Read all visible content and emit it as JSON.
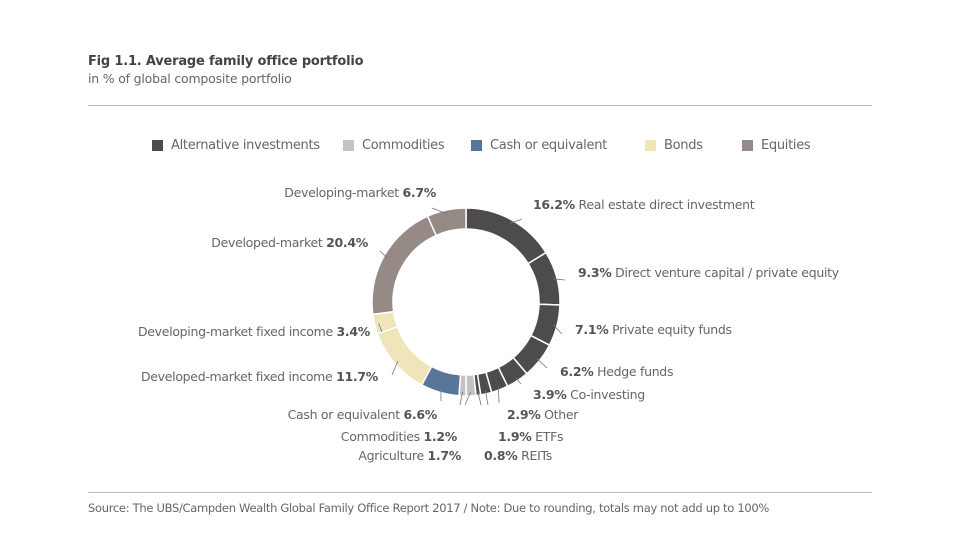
{
  "header": {
    "title": "Fig 1.1. Average family office portfolio",
    "subtitle": "in % of global composite portfolio"
  },
  "footer": {
    "source": "Source: The UBS/Campden Wealth Global Family Office Report 2017  /  Note: Due to rounding, totals may not add up to 100%"
  },
  "chart_data": {
    "type": "pie",
    "variant": "donut",
    "title": "Fig 1.1. Average family office portfolio",
    "subtitle": "in % of global composite portfolio",
    "start_angle": "12 o'clock",
    "direction": "clockwise",
    "legend_position": "top",
    "legend": [
      {
        "label": "Alternative investments",
        "color": "#4d4b4c"
      },
      {
        "label": "Commodities",
        "color": "#c3c3c3"
      },
      {
        "label": "Cash or equivalent",
        "color": "#58769a"
      },
      {
        "label": "Bonds",
        "color": "#f0e4b9"
      },
      {
        "label": "Equities",
        "color": "#958a86"
      }
    ],
    "slices": [
      {
        "label": "Real estate direct investment",
        "value": 16.2,
        "group": "Alternative investments",
        "value_first": true
      },
      {
        "label": "Direct venture capital / private equity",
        "value": 9.3,
        "group": "Alternative investments",
        "value_first": true
      },
      {
        "label": "Private equity funds",
        "value": 7.1,
        "group": "Alternative investments",
        "value_first": true
      },
      {
        "label": "Hedge funds",
        "value": 6.2,
        "group": "Alternative investments",
        "value_first": true
      },
      {
        "label": "Co-investing",
        "value": 3.9,
        "group": "Alternative investments",
        "value_first": true
      },
      {
        "label": "Other",
        "value": 2.9,
        "group": "Alternative investments",
        "value_first": true
      },
      {
        "label": "ETFs",
        "value": 1.9,
        "group": "Alternative investments",
        "value_first": true
      },
      {
        "label": "REITs",
        "value": 0.8,
        "group": "Alternative investments",
        "value_first": true
      },
      {
        "label": "Agriculture",
        "value": 1.7,
        "group": "Commodities",
        "value_first": false
      },
      {
        "label": "Commodities",
        "value": 1.2,
        "group": "Commodities",
        "value_first": false
      },
      {
        "label": "Cash or equivalent",
        "value": 6.6,
        "group": "Cash or equivalent",
        "value_first": false
      },
      {
        "label": "Developed-market fixed income",
        "value": 11.7,
        "group": "Bonds",
        "value_first": false
      },
      {
        "label": "Developing-market fixed income",
        "value": 3.4,
        "group": "Bonds",
        "value_first": false
      },
      {
        "label": "Developed-market",
        "value": 20.4,
        "group": "Equities",
        "value_first": false
      },
      {
        "label": "Developing-market",
        "value": 6.7,
        "group": "Equities",
        "value_first": false
      }
    ]
  }
}
